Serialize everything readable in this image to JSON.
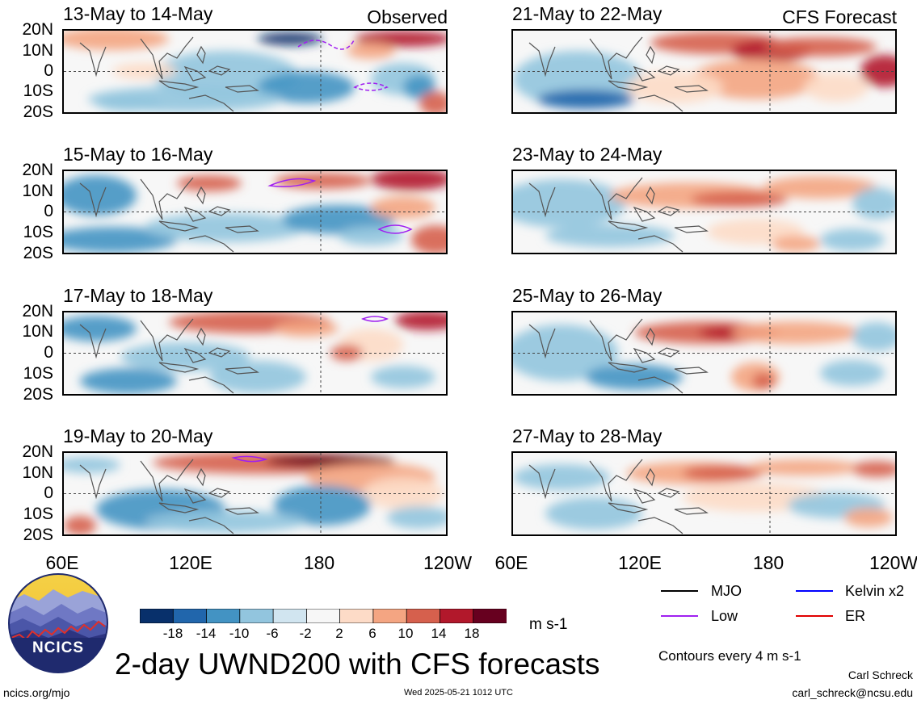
{
  "header": {
    "observed": "Observed",
    "forecast": "CFS Forecast"
  },
  "panels_left": [
    {
      "title": "13-May to 14-May"
    },
    {
      "title": "15-May to 16-May"
    },
    {
      "title": "17-May to 18-May"
    },
    {
      "title": "19-May to 20-May"
    }
  ],
  "panels_right": [
    {
      "title": "21-May to 22-May"
    },
    {
      "title": "23-May to 24-May"
    },
    {
      "title": "25-May to 26-May"
    },
    {
      "title": "27-May to 28-May"
    }
  ],
  "lat_labels": [
    "20N",
    "10N",
    "0",
    "10S",
    "20S"
  ],
  "lon_labels": [
    "60E",
    "120E",
    "180",
    "120W"
  ],
  "colorbar": {
    "ticks": [
      "-18",
      "-14",
      "-10",
      "-6",
      "-2",
      "2",
      "6",
      "10",
      "14",
      "18"
    ],
    "unit": "m s-1",
    "colors": [
      "#08306b",
      "#2166ac",
      "#4393c3",
      "#92c5de",
      "#d1e5f0",
      "#f7f7f7",
      "#fddbc7",
      "#f4a582",
      "#d6604d",
      "#b2182b",
      "#67001f"
    ]
  },
  "legend": {
    "items": [
      {
        "label": "MJO",
        "color": "#000000"
      },
      {
        "label": "Kelvin x2",
        "color": "#0000ff"
      },
      {
        "label": "Low",
        "color": "#a020f0"
      },
      {
        "label": "ER",
        "color": "#e00000"
      }
    ],
    "contour_note": "Contours every 4 m s-1"
  },
  "title": "2-day UWND200 with CFS forecasts",
  "logo_text": "NCICS",
  "footer": {
    "left": "ncics.org/mjo",
    "timestamp": "Wed 2025-05-21 1012 UTC",
    "author": "Carl Schreck",
    "email": "carl_schreck@ncsu.edu"
  },
  "chart_data": {
    "type": "heatmap",
    "variable": "UWND200",
    "unit": "m s-1",
    "x_labels": [
      "60E",
      "120E",
      "180",
      "120W"
    ],
    "y_labels": [
      "20N",
      "10N",
      "0",
      "10S",
      "20S"
    ],
    "xlim": [
      "60E",
      "120W"
    ],
    "ylim": [
      "20S",
      "20N"
    ],
    "contour_levels": [
      -18,
      -14,
      -10,
      -6,
      -2,
      2,
      6,
      10,
      14,
      18
    ],
    "panels": [
      {
        "period": "13-May to 14-May",
        "source": "Observed"
      },
      {
        "period": "15-May to 16-May",
        "source": "Observed"
      },
      {
        "period": "17-May to 18-May",
        "source": "Observed"
      },
      {
        "period": "19-May to 20-May",
        "source": "Observed"
      },
      {
        "period": "21-May to 22-May",
        "source": "CFS Forecast"
      },
      {
        "period": "23-May to 24-May",
        "source": "CFS Forecast"
      },
      {
        "period": "25-May to 26-May",
        "source": "CFS Forecast"
      },
      {
        "period": "27-May to 28-May",
        "source": "CFS Forecast"
      }
    ]
  }
}
